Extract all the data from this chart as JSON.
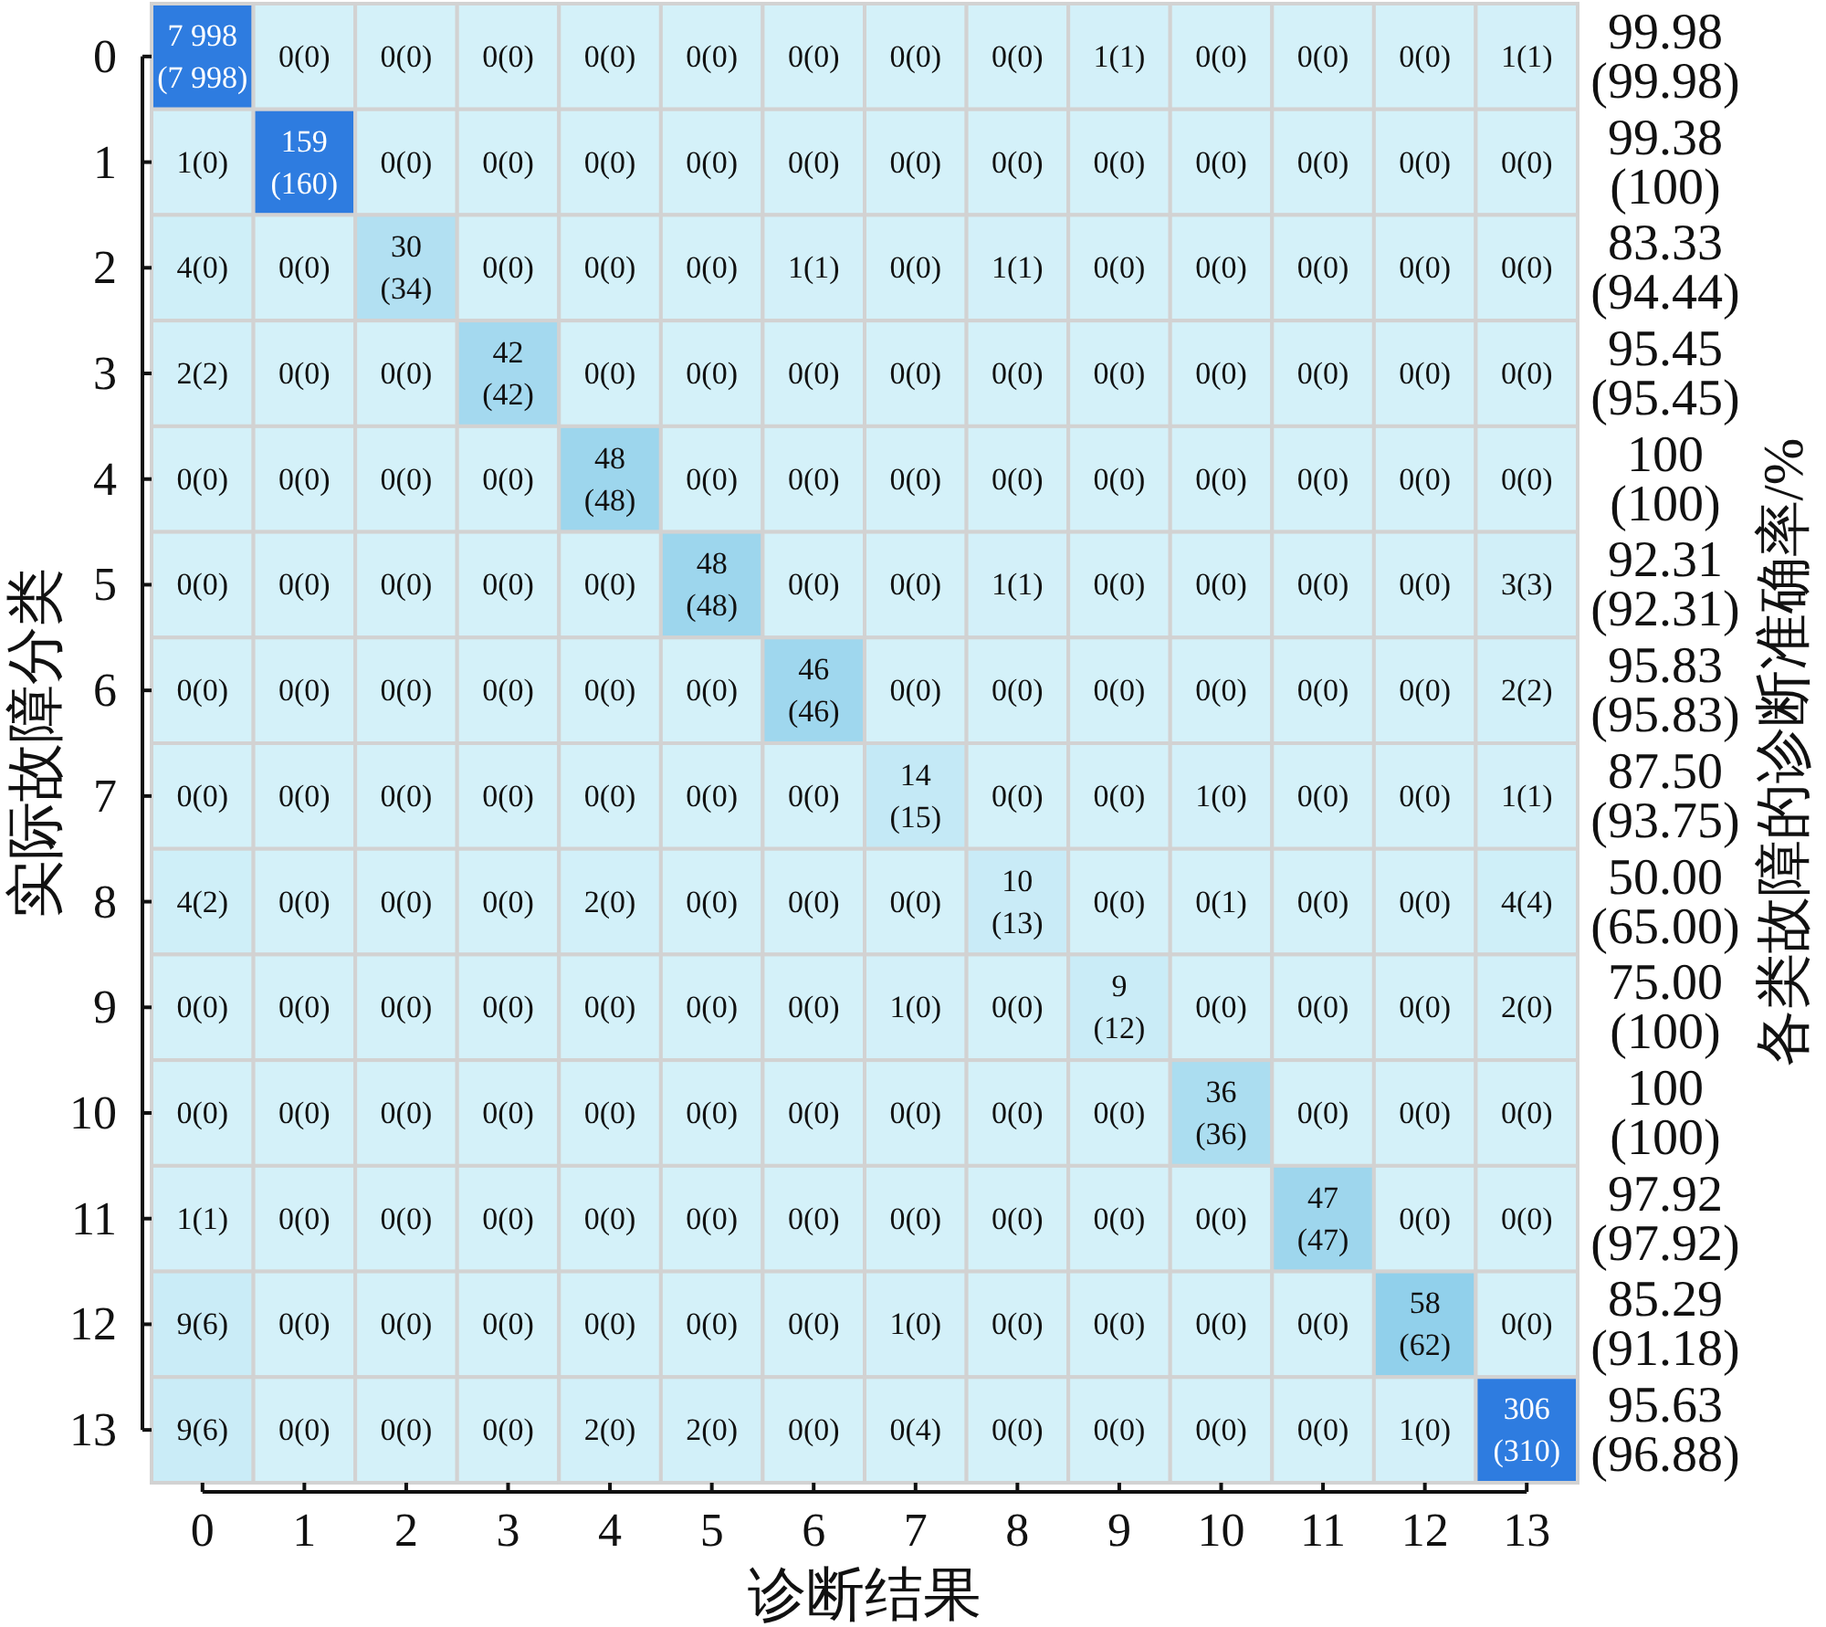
{
  "chart_data": {
    "type": "heatmap",
    "xlabel": "诊断结果",
    "ylabel": "实际故障分类",
    "y2label": "各类故障的诊断准确率/%",
    "data_labels": true,
    "categories": [
      "0",
      "1",
      "2",
      "3",
      "4",
      "5",
      "6",
      "7",
      "8",
      "9",
      "10",
      "11",
      "12",
      "13"
    ],
    "y_categories": [
      "0",
      "1",
      "2",
      "3",
      "4",
      "5",
      "6",
      "7",
      "8",
      "9",
      "10",
      "11",
      "12",
      "13"
    ],
    "y2_categories": [
      "99.98\n(99.98)",
      "99.38\n(100)",
      "83.33\n(94.44)",
      "95.45\n(95.45)",
      "100\n(100)",
      "92.31\n(92.31)",
      "95.83\n(95.83)",
      "87.50\n(93.75)",
      "50.00\n(65.00)",
      "75.00\n(100)",
      "100\n(100)",
      "97.92\n(97.92)",
      "85.29\n(91.18)",
      "95.63\n(96.88)"
    ],
    "cells": [
      [
        7998,
        0,
        0,
        0,
        0,
        0,
        0,
        0,
        0,
        1,
        0,
        0,
        0,
        1
      ],
      [
        1,
        159,
        0,
        0,
        0,
        0,
        0,
        0,
        0,
        0,
        0,
        0,
        0,
        0
      ],
      [
        4,
        0,
        30,
        0,
        0,
        0,
        1,
        0,
        1,
        0,
        0,
        0,
        0,
        0
      ],
      [
        2,
        0,
        0,
        42,
        0,
        0,
        0,
        0,
        0,
        0,
        0,
        0,
        0,
        0
      ],
      [
        0,
        0,
        0,
        0,
        48,
        0,
        0,
        0,
        0,
        0,
        0,
        0,
        0,
        0
      ],
      [
        0,
        0,
        0,
        0,
        0,
        48,
        0,
        0,
        1,
        0,
        0,
        0,
        0,
        3
      ],
      [
        0,
        0,
        0,
        0,
        0,
        0,
        46,
        0,
        0,
        0,
        0,
        0,
        0,
        2
      ],
      [
        0,
        0,
        0,
        0,
        0,
        0,
        0,
        14,
        0,
        0,
        1,
        0,
        0,
        1
      ],
      [
        4,
        0,
        0,
        0,
        2,
        0,
        0,
        0,
        10,
        0,
        0,
        0,
        0,
        4
      ],
      [
        0,
        0,
        0,
        0,
        0,
        0,
        0,
        1,
        0,
        9,
        0,
        0,
        0,
        2
      ],
      [
        0,
        0,
        0,
        0,
        0,
        0,
        0,
        0,
        0,
        0,
        36,
        0,
        0,
        0
      ],
      [
        1,
        0,
        0,
        0,
        0,
        0,
        0,
        0,
        0,
        0,
        0,
        47,
        0,
        0
      ],
      [
        9,
        0,
        0,
        0,
        0,
        0,
        0,
        1,
        0,
        0,
        0,
        0,
        58,
        0
      ],
      [
        9,
        0,
        0,
        0,
        2,
        2,
        0,
        0,
        0,
        0,
        0,
        0,
        1,
        306
      ]
    ],
    "annotations": [
      "(7 998)",
      "(0)",
      "(0)",
      "(0)",
      "(0)",
      "(0)",
      "(0)",
      "(0)",
      "(0)",
      "(1)",
      "(0)",
      "(0)",
      "(0)",
      "(1)",
      "(0)",
      "(160)",
      "(0)",
      "(0)",
      "(0)",
      "(0)",
      "(0)",
      "(0)",
      "(0)",
      "(0)",
      "(0)",
      "(0)",
      "(0)",
      "(0)",
      "(0)",
      "(0)",
      "(34)",
      "(0)",
      "(0)",
      "(0)",
      "(1)",
      "(0)",
      "(1)",
      "(0)",
      "(0)",
      "(0)",
      "(0)",
      "(0)",
      "(2)",
      "(0)",
      "(0)",
      "(42)",
      "(0)",
      "(0)",
      "(0)",
      "(0)",
      "(0)",
      "(0)",
      "(0)",
      "(0)",
      "(0)",
      "(0)",
      "(0)",
      "(0)",
      "(0)",
      "(0)",
      "(48)",
      "(0)",
      "(0)",
      "(0)",
      "(0)",
      "(0)",
      "(0)",
      "(0)",
      "(0)",
      "(0)",
      "(0)",
      "(0)",
      "(0)",
      "(0)",
      "(0)",
      "(48)",
      "(0)",
      "(0)",
      "(1)",
      "(0)",
      "(0)",
      "(0)",
      "(0)",
      "(3)",
      "(0)",
      "(0)",
      "(0)",
      "(0)",
      "(0)",
      "(0)",
      "(46)",
      "(0)",
      "(0)",
      "(0)",
      "(0)",
      "(0)",
      "(0)",
      "(2)",
      "(0)",
      "(0)",
      "(0)",
      "(0)",
      "(0)",
      "(0)",
      "(0)",
      "(15)",
      "(0)",
      "(0)",
      "(0)",
      "(0)",
      "(0)",
      "(1)",
      "(2)",
      "(0)",
      "(0)",
      "(0)",
      "(0)",
      "(0)",
      "(0)",
      "(0)",
      "(13)",
      "(0)",
      "(1)",
      "(0)",
      "(0)",
      "(4)",
      "(0)",
      "(0)",
      "(0)",
      "(0)",
      "(0)",
      "(0)",
      "(0)",
      "(0)",
      "(0)",
      "(12)",
      "(0)",
      "(0)",
      "(0)",
      "(0)",
      "(0)",
      "(0)",
      "(0)",
      "(0)",
      "(0)",
      "(0)",
      "(0)",
      "(0)",
      "(0)",
      "(0)",
      "(36)",
      "(0)",
      "(0)",
      "(0)",
      "(1)",
      "(0)",
      "(0)",
      "(0)",
      "(0)",
      "(0)",
      "(0)",
      "(0)",
      "(0)",
      "(0)",
      "(0)",
      "(47)",
      "(0)",
      "(0)",
      "(6)",
      "(0)",
      "(0)",
      "(0)",
      "(0)",
      "(0)",
      "(0)",
      "(0)",
      "(0)",
      "(0)",
      "(0)",
      "(0)",
      "(62)",
      "(0)",
      "(6)",
      "(0)",
      "(0)",
      "(0)",
      "(0)",
      "(0)",
      "(0)",
      "(4)",
      "(0)",
      "(0)",
      "(0)",
      "(0)",
      "(0)",
      "(310)"
    ]
  }
}
